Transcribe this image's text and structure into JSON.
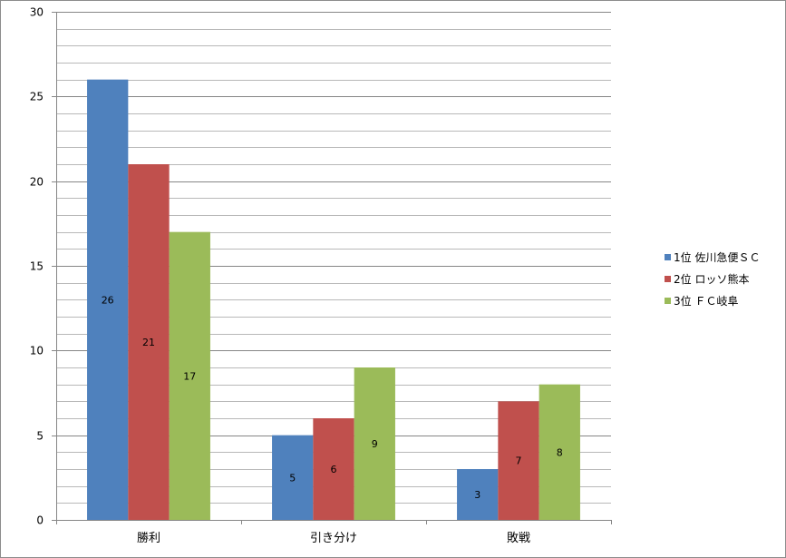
{
  "chart_data": {
    "type": "bar",
    "title": "",
    "xlabel": "",
    "ylabel": "",
    "ylim": [
      0,
      30
    ],
    "y_major_ticks": [
      0,
      5,
      10,
      15,
      20,
      25,
      30
    ],
    "y_minor_step": 1,
    "grid": true,
    "legend_position": "right",
    "categories": [
      "勝利",
      "引き分け",
      "敗戦"
    ],
    "series": [
      {
        "name": "1位 佐川急便ＳＣ",
        "color": "#4f81bd",
        "values": [
          26,
          5,
          3
        ]
      },
      {
        "name": "2位 ロッソ熊本",
        "color": "#c0504d",
        "values": [
          21,
          6,
          7
        ]
      },
      {
        "name": "3位 ＦＣ岐阜",
        "color": "#9bbb59",
        "values": [
          17,
          9,
          8
        ]
      }
    ],
    "data_labels": true
  }
}
